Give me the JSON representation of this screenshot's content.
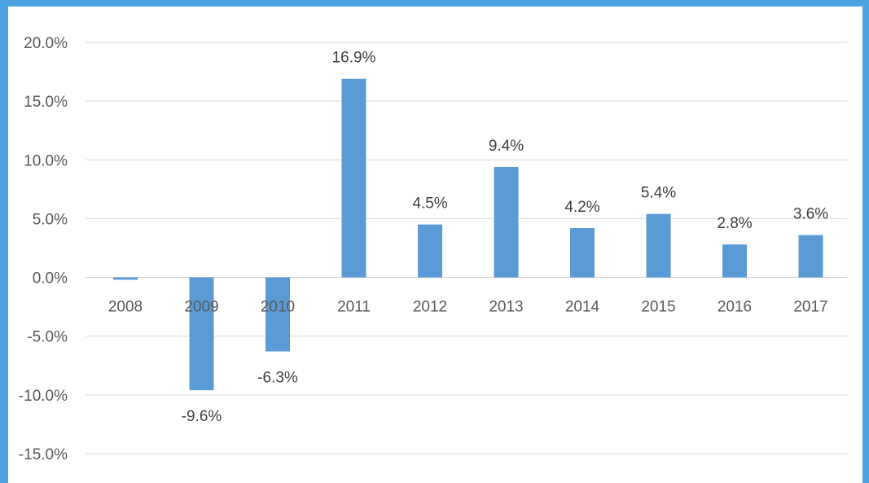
{
  "chart_data": {
    "type": "bar",
    "categories": [
      "2008",
      "2009",
      "2010",
      "2011",
      "2012",
      "2013",
      "2014",
      "2015",
      "2016",
      "2017"
    ],
    "values": [
      -0.2,
      -9.6,
      -6.3,
      16.9,
      4.5,
      9.4,
      4.2,
      5.4,
      2.8,
      3.6
    ],
    "data_labels": [
      "",
      "-9.6%",
      "-6.3%",
      "16.9%",
      "4.5%",
      "9.4%",
      "4.2%",
      "5.4%",
      "2.8%",
      "3.6%"
    ],
    "yticks": [
      20,
      15,
      10,
      5,
      0,
      -5,
      -10,
      -15
    ],
    "ytick_labels": [
      "20.0%",
      "15.0%",
      "10.0%",
      "5.0%",
      "0.0%",
      "-5.0%",
      "-10.0%",
      "-15.0%"
    ],
    "ylim": [
      -15,
      20
    ],
    "grid": true,
    "legend": false,
    "title": "",
    "xlabel": "",
    "ylabel": "",
    "colors": {
      "bar": "#5b9bd5",
      "frame": "#4aa3e0",
      "grid": "#d9d9d9"
    }
  }
}
